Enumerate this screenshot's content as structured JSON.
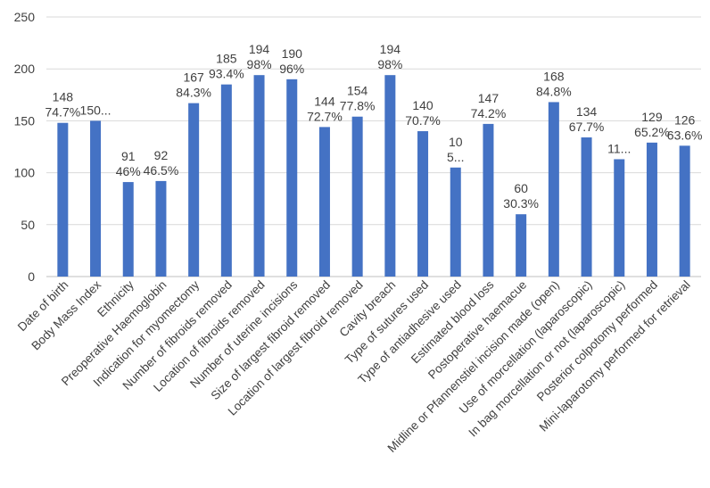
{
  "chart_data": {
    "type": "bar",
    "title": "",
    "xlabel": "",
    "ylabel": "",
    "ylim": [
      0,
      250
    ],
    "yticks": [
      "0",
      "50",
      "100",
      "150",
      "200",
      "250"
    ],
    "grid": true,
    "legend": "none",
    "bar_color": "#4472C4",
    "categories": [
      "Date of birth",
      "Body Mass Index",
      "Ethnicity",
      "Preoperative Haemoglobin",
      "Indication for myomectomy",
      "Number of fibroids removed",
      "Location of fibroids removed",
      "Number of uterine incisions",
      "Size of largest fibroid removed",
      "Location of largest fibroid removed",
      "Cavity breach",
      "Type of sutures used",
      "Type of antiadhesive used",
      "Estimated blood loss",
      "Postoperative haemacue",
      "Midline or Pfannenstiel incision made (open)",
      "Use of morcellation (laparoscopic)",
      "In bag morcellation or not (laparoscopic)",
      "Posterior colpotomy performed",
      "Mini-laparotomy performed for retrieval"
    ],
    "values": [
      148,
      150,
      91,
      92,
      167,
      185,
      194,
      190,
      144,
      154,
      194,
      140,
      105,
      147,
      60,
      168,
      134,
      113,
      129,
      126
    ],
    "data_labels": [
      [
        "148",
        "74.7%"
      ],
      [
        "150..."
      ],
      [
        "91",
        "46%"
      ],
      [
        "92",
        "46.5%"
      ],
      [
        "167",
        "84.3%"
      ],
      [
        "185",
        "93.4%"
      ],
      [
        "194",
        "98%"
      ],
      [
        "190",
        "96%"
      ],
      [
        "144",
        "72.7%"
      ],
      [
        "154",
        "77.8%"
      ],
      [
        "194",
        "98%"
      ],
      [
        "140",
        "70.7%"
      ],
      [
        "10",
        "5..."
      ],
      [
        "147",
        "74.2%"
      ],
      [
        "60",
        "30.3%"
      ],
      [
        "168",
        "84.8%"
      ],
      [
        "134",
        "67.7%"
      ],
      [
        "11..."
      ],
      [
        "129",
        "65.2%"
      ],
      [
        "126",
        "63.6%"
      ]
    ]
  }
}
